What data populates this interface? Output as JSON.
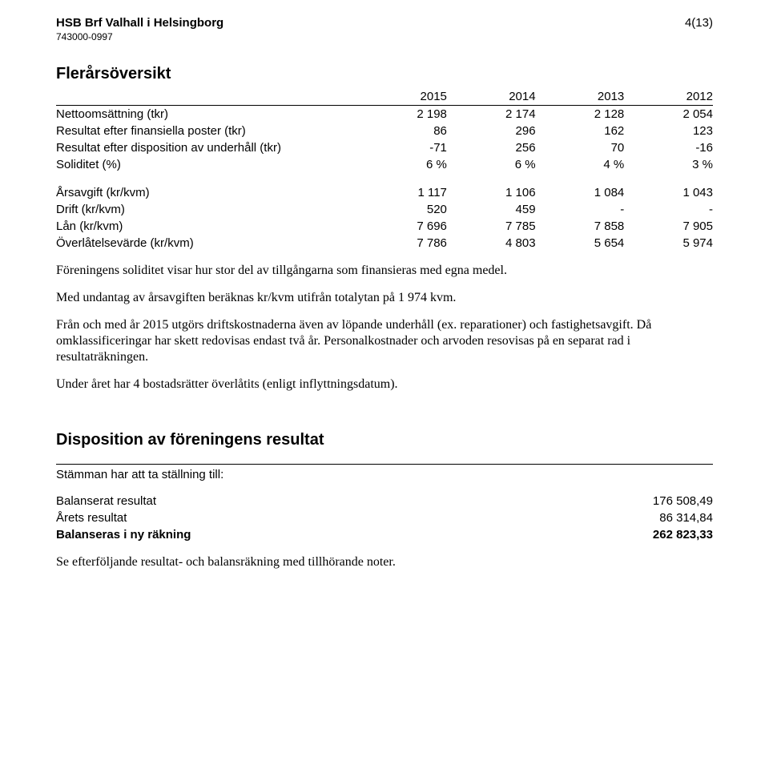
{
  "header": {
    "org_name": "HSB Brf Valhall i Helsingborg",
    "org_nr": "743000-0997",
    "page": "4(13)"
  },
  "overview": {
    "title": "Flerårsöversikt",
    "years": [
      "2015",
      "2014",
      "2013",
      "2012"
    ],
    "rows_a": [
      {
        "label": "Nettoomsättning (tkr)",
        "v": [
          "2 198",
          "2 174",
          "2 128",
          "2 054"
        ]
      },
      {
        "label": "Resultat efter finansiella poster (tkr)",
        "v": [
          "86",
          "296",
          "162",
          "123"
        ]
      },
      {
        "label": "Resultat efter disposition av underhåll (tkr)",
        "v": [
          "-71",
          "256",
          "70",
          "-16"
        ]
      },
      {
        "label": "Soliditet (%)",
        "v": [
          "6 %",
          "6 %",
          "4 %",
          "3 %"
        ]
      }
    ],
    "rows_b": [
      {
        "label": "Årsavgift (kr/kvm)",
        "v": [
          "1 117",
          "1 106",
          "1 084",
          "1 043"
        ]
      },
      {
        "label": "Drift (kr/kvm)",
        "v": [
          "520",
          "459",
          "-",
          "-"
        ]
      },
      {
        "label": "Lån (kr/kvm)",
        "v": [
          "7 696",
          "7 785",
          "7 858",
          "7 905"
        ]
      },
      {
        "label": "Överlåtelsevärde (kr/kvm)",
        "v": [
          "7 786",
          "4 803",
          "5 654",
          "5 974"
        ]
      }
    ]
  },
  "paras": {
    "p1": "Föreningens soliditet visar hur stor del av tillgångarna som finansieras med egna medel.",
    "p2": "Med undantag av årsavgiften beräknas kr/kvm utifrån totalytan på 1 974 kvm.",
    "p3": "Från och med år 2015 utgörs driftskostnaderna även av löpande underhåll (ex. reparationer) och fastighetsavgift. Då omklassificeringar har skett redovisas endast två år. Personalkostnader och arvoden resovisas på en separat rad i resultaträkningen.",
    "p4": "Under året har 4 bostadsrätter överlåtits (enligt inflyttningsdatum)."
  },
  "disposition": {
    "title": "Disposition av föreningens resultat",
    "sub": "Stämman har att ta ställning till:",
    "lines": [
      {
        "label": "Balanserat resultat",
        "amount": "176 508,49"
      },
      {
        "label": "Årets resultat",
        "amount": "86 314,84"
      }
    ],
    "total": {
      "label": "Balanseras i ny räkning",
      "amount": "262 823,33"
    },
    "footer": "Se efterföljande resultat- och balansräkning med tillhörande noter."
  }
}
